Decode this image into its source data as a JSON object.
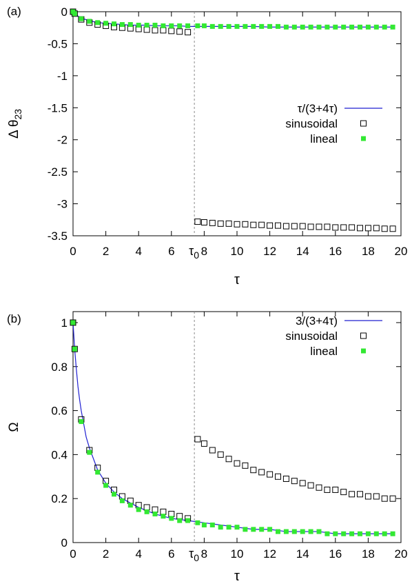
{
  "chart_data": [
    {
      "type": "scatter",
      "panel_label": "(a)",
      "xlabel": "τ",
      "ylabel_main": "Δ θ",
      "ylabel_sub": "23",
      "xlim": [
        0,
        20
      ],
      "ylim": [
        -3.5,
        0
      ],
      "xticks": [
        0,
        2,
        4,
        6,
        8,
        10,
        12,
        14,
        16,
        18,
        20
      ],
      "yticks": [
        0,
        -0.5,
        -1,
        -1.5,
        -2,
        -2.5,
        -3,
        -3.5
      ],
      "ytick_labels": [
        "0",
        "-0.5",
        "-1",
        "-1.5",
        "-2",
        "-2.5",
        "-3",
        "-3.5"
      ],
      "tau0_marker": {
        "x": 7.4,
        "label_main": "τ",
        "label_sub": "0"
      },
      "grid": false,
      "legend_position": "center-right",
      "series": [
        {
          "name": "τ/(3+4τ)",
          "style": "line",
          "color": "#1f1fd1",
          "x": [
            0,
            0.25,
            0.5,
            1,
            1.5,
            2,
            2.5,
            3,
            3.5,
            4,
            4.5,
            5,
            5.5,
            6,
            6.5,
            7,
            7.5,
            8,
            9,
            10,
            11,
            12,
            13,
            14,
            15,
            16,
            17,
            18,
            19,
            19.6
          ],
          "y": [
            0,
            -0.06,
            -0.1,
            -0.14,
            -0.17,
            -0.18,
            -0.19,
            -0.2,
            -0.21,
            -0.21,
            -0.21,
            -0.22,
            -0.22,
            -0.22,
            -0.22,
            -0.23,
            -0.23,
            -0.23,
            -0.23,
            -0.23,
            -0.23,
            -0.24,
            -0.24,
            -0.24,
            -0.24,
            -0.24,
            -0.24,
            -0.24,
            -0.24,
            -0.24
          ]
        },
        {
          "name": "sinusoidal",
          "style": "open-square",
          "color": "#000000",
          "x": [
            0,
            0.1,
            0.5,
            1,
            1.5,
            2,
            2.5,
            3,
            3.5,
            4,
            4.5,
            5,
            5.5,
            6,
            6.5,
            7,
            7.6,
            8,
            8.5,
            9,
            9.5,
            10,
            10.5,
            11,
            11.5,
            12,
            12.5,
            13,
            13.5,
            14,
            14.5,
            15,
            15.5,
            16,
            16.5,
            17,
            17.5,
            18,
            18.5,
            19,
            19.5
          ],
          "y": [
            0,
            -0.03,
            -0.12,
            -0.17,
            -0.2,
            -0.22,
            -0.24,
            -0.25,
            -0.26,
            -0.27,
            -0.28,
            -0.29,
            -0.29,
            -0.3,
            -0.31,
            -0.32,
            -3.28,
            -3.29,
            -3.3,
            -3.31,
            -3.31,
            -3.32,
            -3.32,
            -3.33,
            -3.33,
            -3.34,
            -3.34,
            -3.35,
            -3.35,
            -3.35,
            -3.36,
            -3.36,
            -3.36,
            -3.37,
            -3.37,
            -3.37,
            -3.38,
            -3.38,
            -3.38,
            -3.39,
            -3.39
          ]
        },
        {
          "name": "lineal",
          "style": "filled-square",
          "color": "#33e833",
          "x": [
            0,
            0.1,
            0.5,
            1,
            1.5,
            2,
            2.5,
            3,
            3.5,
            4,
            4.5,
            5,
            5.5,
            6,
            6.5,
            7,
            7.6,
            8,
            8.5,
            9,
            9.5,
            10,
            10.5,
            11,
            11.5,
            12,
            12.5,
            13,
            13.5,
            14,
            14.5,
            15,
            15.5,
            16,
            16.5,
            17,
            17.5,
            18,
            18.5,
            19,
            19.5
          ],
          "y": [
            0,
            -0.03,
            -0.11,
            -0.15,
            -0.17,
            -0.18,
            -0.19,
            -0.2,
            -0.2,
            -0.21,
            -0.21,
            -0.21,
            -0.22,
            -0.22,
            -0.22,
            -0.22,
            -0.22,
            -0.22,
            -0.23,
            -0.23,
            -0.23,
            -0.23,
            -0.23,
            -0.23,
            -0.23,
            -0.23,
            -0.23,
            -0.24,
            -0.24,
            -0.24,
            -0.24,
            -0.24,
            -0.24,
            -0.24,
            -0.24,
            -0.24,
            -0.24,
            -0.24,
            -0.24,
            -0.24,
            -0.24
          ]
        }
      ]
    },
    {
      "type": "scatter",
      "panel_label": "(b)",
      "xlabel": "τ",
      "ylabel_main": "Ω",
      "ylabel_sub": "",
      "xlim": [
        0,
        20
      ],
      "ylim": [
        0,
        1.05
      ],
      "xticks": [
        0,
        2,
        4,
        6,
        8,
        10,
        12,
        14,
        16,
        18,
        20
      ],
      "yticks": [
        0,
        0.2,
        0.4,
        0.6,
        0.8,
        1
      ],
      "ytick_labels": [
        "0",
        "0.2",
        "0.4",
        "0.6",
        "0.8",
        "1"
      ],
      "tau0_marker": {
        "x": 7.4,
        "label_main": "τ",
        "label_sub": "0"
      },
      "grid": false,
      "legend_position": "top-right",
      "series": [
        {
          "name": "3/(3+4τ)",
          "style": "line",
          "color": "#1f1fd1",
          "x": [
            0,
            0.05,
            0.1,
            0.2,
            0.3,
            0.4,
            0.5,
            0.6,
            0.8,
            1,
            1.25,
            1.5,
            1.75,
            2,
            2.5,
            3,
            3.5,
            4,
            5,
            6,
            7,
            8,
            9,
            10,
            11,
            12,
            13,
            14,
            15,
            16,
            17,
            18,
            19,
            19.6
          ],
          "y": [
            1,
            0.94,
            0.88,
            0.79,
            0.71,
            0.65,
            0.6,
            0.56,
            0.48,
            0.43,
            0.38,
            0.33,
            0.3,
            0.27,
            0.23,
            0.2,
            0.18,
            0.16,
            0.13,
            0.11,
            0.1,
            0.09,
            0.08,
            0.07,
            0.06,
            0.06,
            0.05,
            0.05,
            0.05,
            0.04,
            0.04,
            0.04,
            0.04,
            0.04
          ]
        },
        {
          "name": "sinusoidal",
          "style": "open-square",
          "color": "#000000",
          "x": [
            0,
            0.1,
            0.5,
            1,
            1.5,
            2,
            2.5,
            3,
            3.5,
            4,
            4.5,
            5,
            5.5,
            6,
            6.5,
            7,
            7.6,
            8,
            8.5,
            9,
            9.5,
            10,
            10.5,
            11,
            11.5,
            12,
            12.5,
            13,
            13.5,
            14,
            14.5,
            15,
            15.5,
            16,
            16.5,
            17,
            17.5,
            18,
            18.5,
            19,
            19.5
          ],
          "y": [
            1,
            0.88,
            0.56,
            0.42,
            0.34,
            0.28,
            0.24,
            0.21,
            0.19,
            0.17,
            0.16,
            0.15,
            0.14,
            0.13,
            0.12,
            0.11,
            0.47,
            0.45,
            0.42,
            0.4,
            0.38,
            0.36,
            0.35,
            0.33,
            0.32,
            0.31,
            0.3,
            0.29,
            0.28,
            0.27,
            0.26,
            0.25,
            0.24,
            0.24,
            0.23,
            0.22,
            0.22,
            0.21,
            0.21,
            0.2,
            0.2
          ]
        },
        {
          "name": "lineal",
          "style": "filled-square",
          "color": "#33e833",
          "x": [
            0,
            0.1,
            0.5,
            1,
            1.5,
            2,
            2.5,
            3,
            3.5,
            4,
            4.5,
            5,
            5.5,
            6,
            6.5,
            7,
            7.6,
            8,
            8.5,
            9,
            9.5,
            10,
            10.5,
            11,
            11.5,
            12,
            12.5,
            13,
            13.5,
            14,
            14.5,
            15,
            15.5,
            16,
            16.5,
            17,
            17.5,
            18,
            18.5,
            19,
            19.5
          ],
          "y": [
            1,
            0.88,
            0.55,
            0.41,
            0.32,
            0.26,
            0.22,
            0.19,
            0.17,
            0.15,
            0.14,
            0.13,
            0.12,
            0.11,
            0.1,
            0.1,
            0.09,
            0.08,
            0.08,
            0.07,
            0.07,
            0.07,
            0.06,
            0.06,
            0.06,
            0.06,
            0.05,
            0.05,
            0.05,
            0.05,
            0.05,
            0.05,
            0.04,
            0.04,
            0.04,
            0.04,
            0.04,
            0.04,
            0.04,
            0.04,
            0.04
          ]
        }
      ]
    }
  ]
}
